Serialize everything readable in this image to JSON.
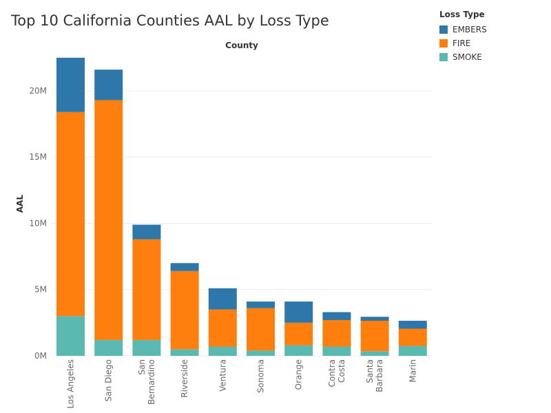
{
  "chart_data": {
    "type": "bar",
    "stacked": true,
    "title": "Top 10 California Counties AAL by Loss Type",
    "column_header": "County",
    "ylabel": "AAL",
    "ylim": [
      0,
      22700000
    ],
    "yticks": [
      0,
      5000000,
      10000000,
      15000000,
      20000000
    ],
    "ytick_labels": [
      "0M",
      "5M",
      "10M",
      "15M",
      "20M"
    ],
    "categories": [
      "Los Angeles",
      "San Diego",
      "San Bernardino",
      "Riverside",
      "Ventura",
      "Sonoma",
      "Orange",
      "Contra Costa",
      "Santa Barbara",
      "Marin"
    ],
    "category_lines": [
      [
        "Los Angeles"
      ],
      [
        "San Diego"
      ],
      [
        "San",
        "Bernardino"
      ],
      [
        "Riverside"
      ],
      [
        "Ventura"
      ],
      [
        "Sonoma"
      ],
      [
        "Orange"
      ],
      [
        "Contra",
        "Costa"
      ],
      [
        "Santa",
        "Barbara"
      ],
      [
        "Marin"
      ]
    ],
    "series": [
      {
        "name": "SMOKE",
        "color": "#5ab9b0",
        "values": [
          3000000,
          1200000,
          1200000,
          500000,
          700000,
          400000,
          800000,
          700000,
          350000,
          750000
        ]
      },
      {
        "name": "FIRE",
        "color": "#ff7f0e",
        "values": [
          15400000,
          18100000,
          7600000,
          5900000,
          2800000,
          3200000,
          1700000,
          2000000,
          2300000,
          1300000
        ]
      },
      {
        "name": "EMBERS",
        "color": "#2e77aa",
        "values": [
          4100000,
          2300000,
          1100000,
          600000,
          1600000,
          500000,
          1600000,
          600000,
          300000,
          600000
        ]
      }
    ],
    "legend_title": "Loss Type",
    "legend_position": "top-right",
    "grid": true
  }
}
